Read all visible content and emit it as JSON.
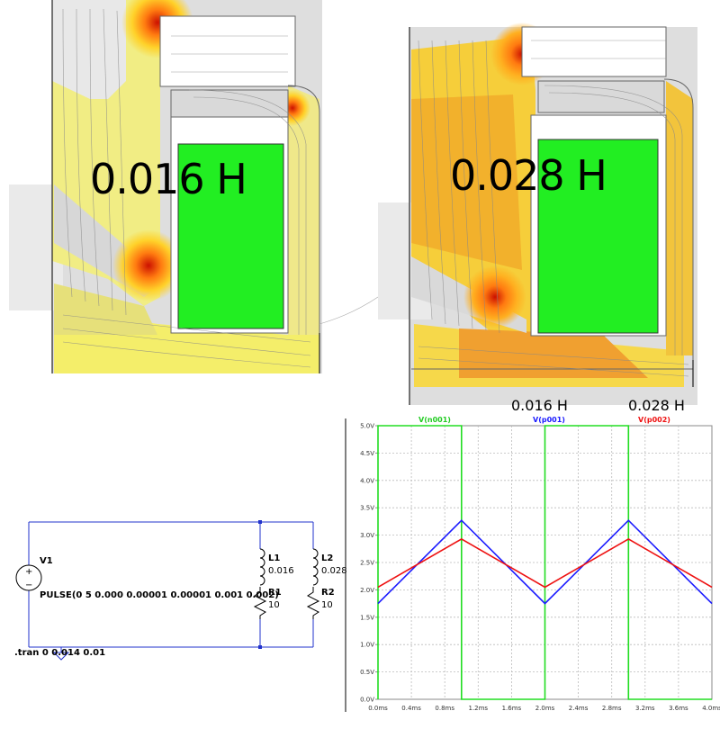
{
  "fem": {
    "left_label": "0.016 H",
    "right_label": "0.028 H"
  },
  "schematic": {
    "source_name": "V1",
    "source_value": "PULSE(0 5 0.000 0.00001 0.00001 0.001 0.002)",
    "l1_name": "L1",
    "l1_value": "0.016",
    "r1_name": "R1",
    "r1_value": "10",
    "l2_name": "L2",
    "l2_value": "0.028",
    "r2_name": "R2",
    "r2_value": "10",
    "directive": ".tran 0 0.014 0.01"
  },
  "plot_annotations": {
    "left": "0.016 H",
    "right": "0.028 H"
  },
  "chart_data": {
    "type": "line",
    "series": [
      {
        "name": "V(n001)",
        "color": "#22dd22",
        "x": [
          0.0,
          0.0,
          1.0,
          1.0,
          2.0,
          2.0,
          3.0,
          3.0,
          4.0
        ],
        "y": [
          0.0,
          5.0,
          5.0,
          0.0,
          0.0,
          5.0,
          5.0,
          0.0,
          0.0
        ]
      },
      {
        "name": "V(p001)",
        "color": "#1a1aff",
        "x": [
          0.0,
          1.0,
          2.0,
          3.0,
          4.0
        ],
        "y": [
          1.75,
          3.27,
          1.75,
          3.27,
          1.75
        ]
      },
      {
        "name": "V(p002)",
        "color": "#ee1111",
        "x": [
          0.0,
          1.0,
          2.0,
          3.0,
          4.0
        ],
        "y": [
          2.05,
          2.93,
          2.05,
          2.93,
          2.05
        ]
      }
    ],
    "x_ticks": [
      "0.0ms",
      "0.4ms",
      "0.8ms",
      "1.2ms",
      "1.6ms",
      "2.0ms",
      "2.4ms",
      "2.8ms",
      "3.2ms",
      "3.6ms",
      "4.0ms"
    ],
    "y_ticks": [
      "0.0V",
      "0.5V",
      "1.0V",
      "1.5V",
      "2.0V",
      "2.5V",
      "3.0V",
      "3.5V",
      "4.0V",
      "4.5V",
      "5.0V"
    ],
    "xlim": [
      0,
      4.0
    ],
    "ylim": [
      0,
      5.0
    ],
    "grid": true
  }
}
